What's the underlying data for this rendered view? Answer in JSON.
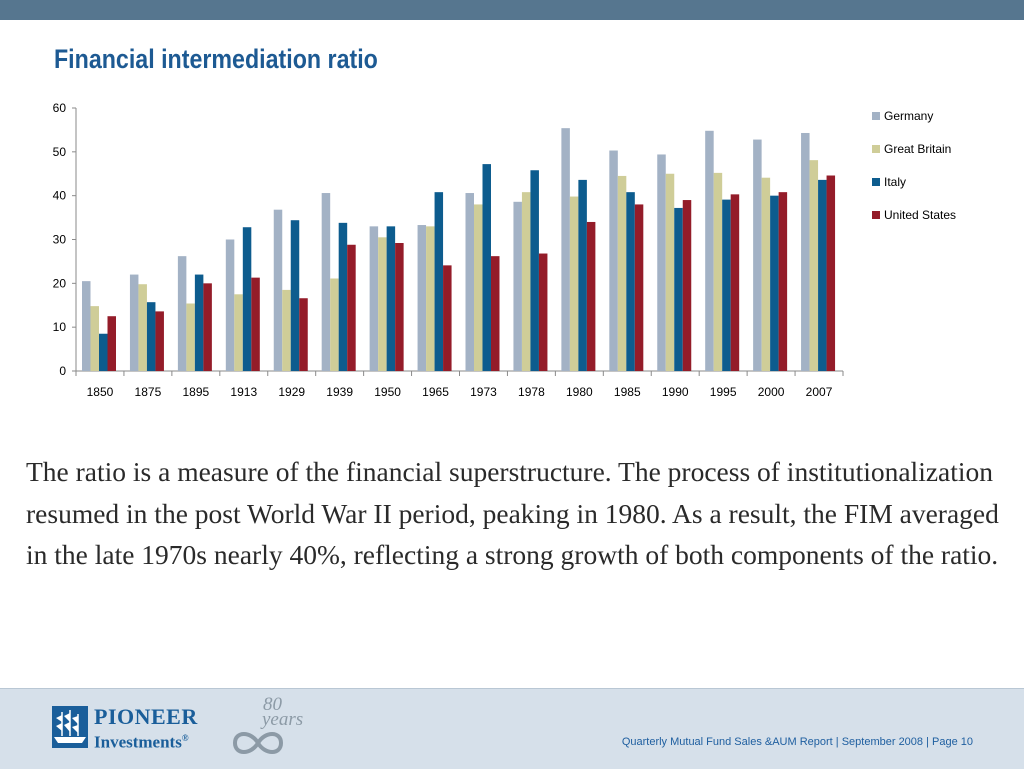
{
  "slide": {
    "title": "Financial intermediation ratio",
    "body": "The ratio is a measure of the financial superstructure. The process of institutionalization resumed in the post World War II period, peaking in 1980. As a result, the FIM averaged in the late 1970s nearly 40%, reflecting a strong growth of both components of the ratio."
  },
  "footer": {
    "logo_name": "PIONEER",
    "logo_sub": "Investments",
    "logo_reg": "®",
    "anniversary_number": "80",
    "anniversary_word": "years",
    "note": "Quarterly Mutual Fund Sales &AUM Report | September 2008 | Page 10"
  },
  "colors": {
    "top_bar": "#56768f",
    "title": "#1d5a93",
    "footer_bg": "#d6e0ea",
    "footer_text": "#1f5fa0"
  },
  "chart_data": {
    "type": "bar",
    "title": "",
    "xlabel": "",
    "ylabel": "",
    "ylim": [
      0,
      60
    ],
    "yticks": [
      0,
      10,
      20,
      30,
      40,
      50,
      60
    ],
    "grid": false,
    "legend_position": "right",
    "categories": [
      "1850",
      "1875",
      "1895",
      "1913",
      "1929",
      "1939",
      "1950",
      "1965",
      "1973",
      "1978",
      "1980",
      "1985",
      "1990",
      "1995",
      "2000",
      "2007"
    ],
    "series": [
      {
        "name": "Germany",
        "color": "#a3b2c5",
        "values": [
          20.5,
          22,
          26.2,
          30,
          36.8,
          40.6,
          33,
          33.3,
          40.6,
          38.6,
          55.4,
          50.3,
          49.4,
          54.8,
          52.8,
          54.3
        ]
      },
      {
        "name": "Great Britain",
        "color": "#cfcd98",
        "values": [
          14.8,
          19.8,
          15.4,
          17.5,
          18.5,
          21.1,
          30.5,
          33,
          38,
          40.8,
          39.8,
          44.5,
          45,
          45.2,
          44.1,
          48.1
        ]
      },
      {
        "name": "Italy",
        "color": "#0d5c8e",
        "values": [
          8.5,
          15.7,
          22,
          32.8,
          34.4,
          33.8,
          33,
          40.8,
          47.2,
          45.8,
          43.6,
          40.8,
          37.2,
          39.1,
          40,
          43.6
        ]
      },
      {
        "name": "United States",
        "color": "#941c29",
        "values": [
          12.5,
          13.6,
          20,
          21.3,
          16.6,
          28.8,
          29.2,
          24.1,
          26.2,
          26.8,
          34,
          38,
          39,
          40.3,
          40.8,
          44.6
        ]
      }
    ]
  }
}
